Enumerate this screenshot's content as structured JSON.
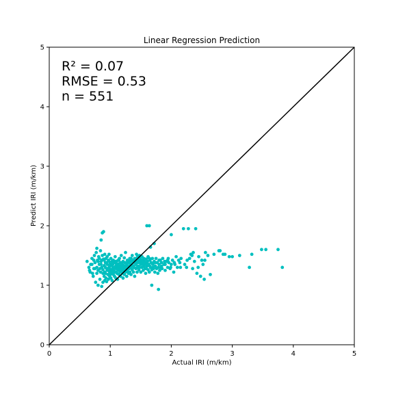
{
  "chart_data": {
    "type": "scatter",
    "title": "Linear Regression Prediction",
    "xlabel": "Actual IRI (m/km)",
    "ylabel": "Predict IRI (m/km)",
    "xlim": [
      0,
      5
    ],
    "ylim": [
      0,
      5
    ],
    "xticks": [
      "0",
      "1",
      "2",
      "3",
      "4",
      "5"
    ],
    "yticks": [
      "0",
      "1",
      "2",
      "3",
      "4",
      "5"
    ],
    "grid": false,
    "annotations": [
      "R² = 0.07",
      "RMSE = 0.53",
      "n = 551"
    ],
    "reference_line": {
      "x": [
        0,
        5
      ],
      "y": [
        0,
        5
      ],
      "color": "#000000"
    },
    "point_color": "#00bfbf",
    "points": [
      [
        0.62,
        1.4
      ],
      [
        0.65,
        1.3
      ],
      [
        0.66,
        1.25
      ],
      [
        0.68,
        1.35
      ],
      [
        0.7,
        1.45
      ],
      [
        0.71,
        1.2
      ],
      [
        0.72,
        1.15
      ],
      [
        0.73,
        1.28
      ],
      [
        0.74,
        1.5
      ],
      [
        0.75,
        1.38
      ],
      [
        0.76,
        1.05
      ],
      [
        0.77,
        1.55
      ],
      [
        0.78,
        1.62
      ],
      [
        0.78,
        1.3
      ],
      [
        0.79,
        1.42
      ],
      [
        0.8,
        1.0
      ],
      [
        0.8,
        1.25
      ],
      [
        0.81,
        1.48
      ],
      [
        0.82,
        1.35
      ],
      [
        0.83,
        1.1
      ],
      [
        0.84,
        1.58
      ],
      [
        0.84,
        1.22
      ],
      [
        0.85,
        1.4
      ],
      [
        0.85,
        1.76
      ],
      [
        0.86,
        0.98
      ],
      [
        0.86,
        1.3
      ],
      [
        0.87,
        1.88
      ],
      [
        0.87,
        1.5
      ],
      [
        0.88,
        1.05
      ],
      [
        0.88,
        1.26
      ],
      [
        0.89,
        1.44
      ],
      [
        0.89,
        1.9
      ],
      [
        0.9,
        1.15
      ],
      [
        0.9,
        1.33
      ],
      [
        0.91,
        1.08
      ],
      [
        0.91,
        1.52
      ],
      [
        0.92,
        1.2
      ],
      [
        0.92,
        1.38
      ],
      [
        0.93,
        1.45
      ],
      [
        0.93,
        1.12
      ],
      [
        0.94,
        1.28
      ],
      [
        0.94,
        1.06
      ],
      [
        0.95,
        1.35
      ],
      [
        0.95,
        1.48
      ],
      [
        0.96,
        1.18
      ],
      [
        0.96,
        1.25
      ],
      [
        0.97,
        1.42
      ],
      [
        0.97,
        1.1
      ],
      [
        0.98,
        1.3
      ],
      [
        0.98,
        1.52
      ],
      [
        0.99,
        1.22
      ],
      [
        0.99,
        1.15
      ],
      [
        1.0,
        1.36
      ],
      [
        1.0,
        1.27
      ],
      [
        1.01,
        1.45
      ],
      [
        1.01,
        1.12
      ],
      [
        1.02,
        1.33
      ],
      [
        1.02,
        1.2
      ],
      [
        1.03,
        1.4
      ],
      [
        1.03,
        1.08
      ],
      [
        1.04,
        1.28
      ],
      [
        1.04,
        1.35
      ],
      [
        1.05,
        1.18
      ],
      [
        1.05,
        1.42
      ],
      [
        1.06,
        1.25
      ],
      [
        1.06,
        1.3
      ],
      [
        1.07,
        1.15
      ],
      [
        1.07,
        1.38
      ],
      [
        1.08,
        1.22
      ],
      [
        1.08,
        1.48
      ],
      [
        1.09,
        1.32
      ],
      [
        1.09,
        1.12
      ],
      [
        1.1,
        1.28
      ],
      [
        1.1,
        1.4
      ],
      [
        1.11,
        1.2
      ],
      [
        1.11,
        1.35
      ],
      [
        1.12,
        1.25
      ],
      [
        1.12,
        1.1
      ],
      [
        1.13,
        1.42
      ],
      [
        1.13,
        1.3
      ],
      [
        1.14,
        1.18
      ],
      [
        1.14,
        1.36
      ],
      [
        1.15,
        1.26
      ],
      [
        1.15,
        1.45
      ],
      [
        1.16,
        1.22
      ],
      [
        1.16,
        1.32
      ],
      [
        1.17,
        1.38
      ],
      [
        1.17,
        1.15
      ],
      [
        1.18,
        1.28
      ],
      [
        1.18,
        1.5
      ],
      [
        1.19,
        1.24
      ],
      [
        1.19,
        1.35
      ],
      [
        1.2,
        1.3
      ],
      [
        1.2,
        1.2
      ],
      [
        1.21,
        1.4
      ],
      [
        1.21,
        1.12
      ],
      [
        1.22,
        1.33
      ],
      [
        1.22,
        1.25
      ],
      [
        1.23,
        1.46
      ],
      [
        1.23,
        1.18
      ],
      [
        1.24,
        1.3
      ],
      [
        1.24,
        1.38
      ],
      [
        1.25,
        1.22
      ],
      [
        1.25,
        1.55
      ],
      [
        1.26,
        1.28
      ],
      [
        1.27,
        1.35
      ],
      [
        1.27,
        1.15
      ],
      [
        1.28,
        1.42
      ],
      [
        1.28,
        1.25
      ],
      [
        1.29,
        1.32
      ],
      [
        1.3,
        1.2
      ],
      [
        1.3,
        1.38
      ],
      [
        1.31,
        1.28
      ],
      [
        1.32,
        1.45
      ],
      [
        1.32,
        1.22
      ],
      [
        1.33,
        1.35
      ],
      [
        1.34,
        1.3
      ],
      [
        1.34,
        1.18
      ],
      [
        1.35,
        1.4
      ],
      [
        1.36,
        1.26
      ],
      [
        1.36,
        1.5
      ],
      [
        1.37,
        1.33
      ],
      [
        1.38,
        1.22
      ],
      [
        1.38,
        1.42
      ],
      [
        1.39,
        1.3
      ],
      [
        1.4,
        1.38
      ],
      [
        1.4,
        1.15
      ],
      [
        1.41,
        1.45
      ],
      [
        1.42,
        1.28
      ],
      [
        1.42,
        1.35
      ],
      [
        1.43,
        1.52
      ],
      [
        1.44,
        1.4
      ],
      [
        1.44,
        1.22
      ],
      [
        1.45,
        1.48
      ],
      [
        1.46,
        1.32
      ],
      [
        1.46,
        1.42
      ],
      [
        1.47,
        1.26
      ],
      [
        1.48,
        1.38
      ],
      [
        1.48,
        1.5
      ],
      [
        1.49,
        1.45
      ],
      [
        1.5,
        1.35
      ],
      [
        1.5,
        1.22
      ],
      [
        1.51,
        1.42
      ],
      [
        1.52,
        1.3
      ],
      [
        1.52,
        1.48
      ],
      [
        1.53,
        1.38
      ],
      [
        1.54,
        1.25
      ],
      [
        1.55,
        1.45
      ],
      [
        1.55,
        1.32
      ],
      [
        1.56,
        1.4
      ],
      [
        1.57,
        1.28
      ],
      [
        1.58,
        1.36
      ],
      [
        1.58,
        1.2
      ],
      [
        1.59,
        1.44
      ],
      [
        1.6,
        1.32
      ],
      [
        1.6,
        2.0
      ],
      [
        1.61,
        1.4
      ],
      [
        1.62,
        1.26
      ],
      [
        1.62,
        1.48
      ],
      [
        1.63,
        1.35
      ],
      [
        1.64,
        2.0
      ],
      [
        1.64,
        1.22
      ],
      [
        1.65,
        1.42
      ],
      [
        1.66,
        1.3
      ],
      [
        1.66,
        1.64
      ],
      [
        1.67,
        1.38
      ],
      [
        1.68,
        1.26
      ],
      [
        1.68,
        1.0
      ],
      [
        1.69,
        1.45
      ],
      [
        1.7,
        1.35
      ],
      [
        1.71,
        1.28
      ],
      [
        1.72,
        1.7
      ],
      [
        1.72,
        1.4
      ],
      [
        1.73,
        1.22
      ],
      [
        1.74,
        1.32
      ],
      [
        1.75,
        1.45
      ],
      [
        1.76,
        1.28
      ],
      [
        1.77,
        1.38
      ],
      [
        1.78,
        1.2
      ],
      [
        1.79,
        0.93
      ],
      [
        1.8,
        1.35
      ],
      [
        1.81,
        1.25
      ],
      [
        1.82,
        1.42
      ],
      [
        1.83,
        1.3
      ],
      [
        1.84,
        1.38
      ],
      [
        1.85,
        1.28
      ],
      [
        1.86,
        1.45
      ],
      [
        1.88,
        1.35
      ],
      [
        1.9,
        1.25
      ],
      [
        1.92,
        1.4
      ],
      [
        1.94,
        1.3
      ],
      [
        1.95,
        1.45
      ],
      [
        1.96,
        1.38
      ],
      [
        1.98,
        1.28
      ],
      [
        2.0,
        1.85
      ],
      [
        2.0,
        1.35
      ],
      [
        2.02,
        1.42
      ],
      [
        2.04,
        1.22
      ],
      [
        2.06,
        1.35
      ],
      [
        2.08,
        1.48
      ],
      [
        2.1,
        1.3
      ],
      [
        2.12,
        1.42
      ],
      [
        2.14,
        1.38
      ],
      [
        2.16,
        1.45
      ],
      [
        2.2,
        1.95
      ],
      [
        2.22,
        1.35
      ],
      [
        2.25,
        1.3
      ],
      [
        2.28,
        1.95
      ],
      [
        2.3,
        1.45
      ],
      [
        2.32,
        1.52
      ],
      [
        2.35,
        1.28
      ],
      [
        2.36,
        1.55
      ],
      [
        2.38,
        1.4
      ],
      [
        2.4,
        1.95
      ],
      [
        2.42,
        1.2
      ],
      [
        2.45,
        1.48
      ],
      [
        2.48,
        1.15
      ],
      [
        2.5,
        1.42
      ],
      [
        2.52,
        1.35
      ],
      [
        2.54,
        1.1
      ],
      [
        2.56,
        1.55
      ],
      [
        2.6,
        1.5
      ],
      [
        2.64,
        1.18
      ],
      [
        2.7,
        1.52
      ],
      [
        2.78,
        1.58
      ],
      [
        2.8,
        1.58
      ],
      [
        2.85,
        1.52
      ],
      [
        2.88,
        1.52
      ],
      [
        2.95,
        1.48
      ],
      [
        3.0,
        1.48
      ],
      [
        3.12,
        1.5
      ],
      [
        3.28,
        1.3
      ],
      [
        3.32,
        1.52
      ],
      [
        3.48,
        1.6
      ],
      [
        3.55,
        1.6
      ],
      [
        3.75,
        1.6
      ],
      [
        3.82,
        1.3
      ],
      [
        0.95,
        1.25
      ],
      [
        1.05,
        1.3
      ],
      [
        1.15,
        1.28
      ],
      [
        1.25,
        1.32
      ],
      [
        1.35,
        1.35
      ],
      [
        1.45,
        1.38
      ],
      [
        1.55,
        1.4
      ],
      [
        1.65,
        1.32
      ],
      [
        0.85,
        1.35
      ],
      [
        0.92,
        1.3
      ],
      [
        1.02,
        1.25
      ],
      [
        1.12,
        1.35
      ],
      [
        1.22,
        1.3
      ],
      [
        1.32,
        1.4
      ],
      [
        1.42,
        1.35
      ],
      [
        1.52,
        1.42
      ],
      [
        0.8,
        1.4
      ],
      [
        0.88,
        1.2
      ],
      [
        0.98,
        1.4
      ],
      [
        1.08,
        1.3
      ],
      [
        1.18,
        1.25
      ],
      [
        1.28,
        1.38
      ],
      [
        1.38,
        1.32
      ],
      [
        1.48,
        1.3
      ],
      [
        0.75,
        1.28
      ],
      [
        0.82,
        1.45
      ],
      [
        0.9,
        1.42
      ],
      [
        1.0,
        1.18
      ],
      [
        1.1,
        1.34
      ],
      [
        1.2,
        1.38
      ],
      [
        1.3,
        1.28
      ],
      [
        1.4,
        1.45
      ],
      [
        1.5,
        1.48
      ],
      [
        1.6,
        1.38
      ],
      [
        1.7,
        1.3
      ],
      [
        1.8,
        1.42
      ],
      [
        1.9,
        1.35
      ],
      [
        0.7,
        1.35
      ],
      [
        0.78,
        1.2
      ],
      [
        0.86,
        1.42
      ],
      [
        0.94,
        1.38
      ],
      [
        1.04,
        1.22
      ],
      [
        1.14,
        1.42
      ],
      [
        1.24,
        1.25
      ],
      [
        1.34,
        1.45
      ],
      [
        1.44,
        1.3
      ],
      [
        1.54,
        1.35
      ],
      [
        1.64,
        1.45
      ],
      [
        1.74,
        1.38
      ],
      [
        1.84,
        1.32
      ],
      [
        1.94,
        1.42
      ],
      [
        2.05,
        1.38
      ],
      [
        2.15,
        1.3
      ],
      [
        2.26,
        1.42
      ],
      [
        2.34,
        1.5
      ],
      [
        2.44,
        1.3
      ],
      [
        2.55,
        1.42
      ],
      [
        0.67,
        1.22
      ],
      [
        0.73,
        1.42
      ],
      [
        0.83,
        1.28
      ],
      [
        0.91,
        1.22
      ],
      [
        0.99,
        1.32
      ],
      [
        1.09,
        1.4
      ],
      [
        1.19,
        1.3
      ],
      [
        1.29,
        1.22
      ],
      [
        1.39,
        1.4
      ],
      [
        1.49,
        1.4
      ],
      [
        1.59,
        1.28
      ],
      [
        1.69,
        1.36
      ],
      [
        1.79,
        1.3
      ],
      [
        1.89,
        1.4
      ],
      [
        1.99,
        1.3
      ]
    ]
  }
}
